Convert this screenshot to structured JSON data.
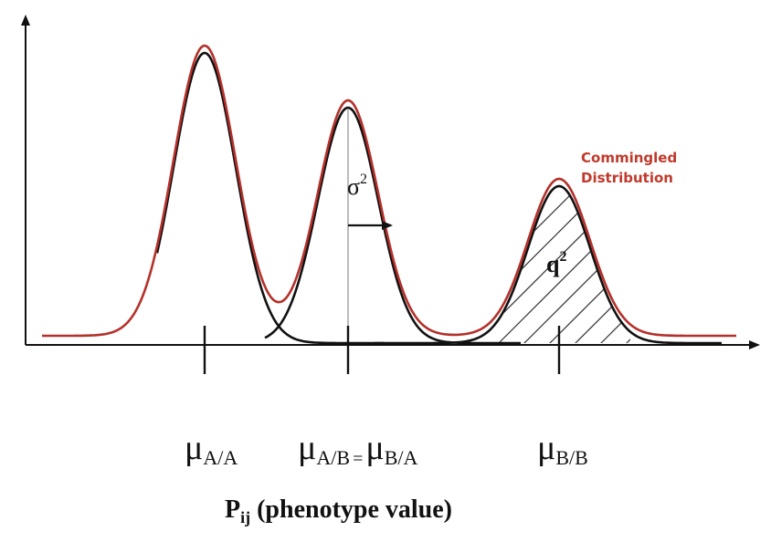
{
  "colors": {
    "commingled": "#c0392b",
    "component": "#111111",
    "axis": "#111111"
  },
  "legend": {
    "line1": "Commingled",
    "line2": "Distribution"
  },
  "annotations": {
    "sigma": "σ",
    "sigma_exp": "2",
    "q": "q",
    "q_exp": "2"
  },
  "means": [
    {
      "symbol": "μ",
      "sub": "A/A"
    },
    {
      "symbol": "μ",
      "sub": "A/B",
      "eq": "=",
      "symbol2": "μ",
      "sub2": "B/A"
    },
    {
      "symbol": "μ",
      "sub": "B/B"
    }
  ],
  "xaxis": {
    "label": "P",
    "sub": "ij",
    "rest": " (phenotype value)"
  }
}
